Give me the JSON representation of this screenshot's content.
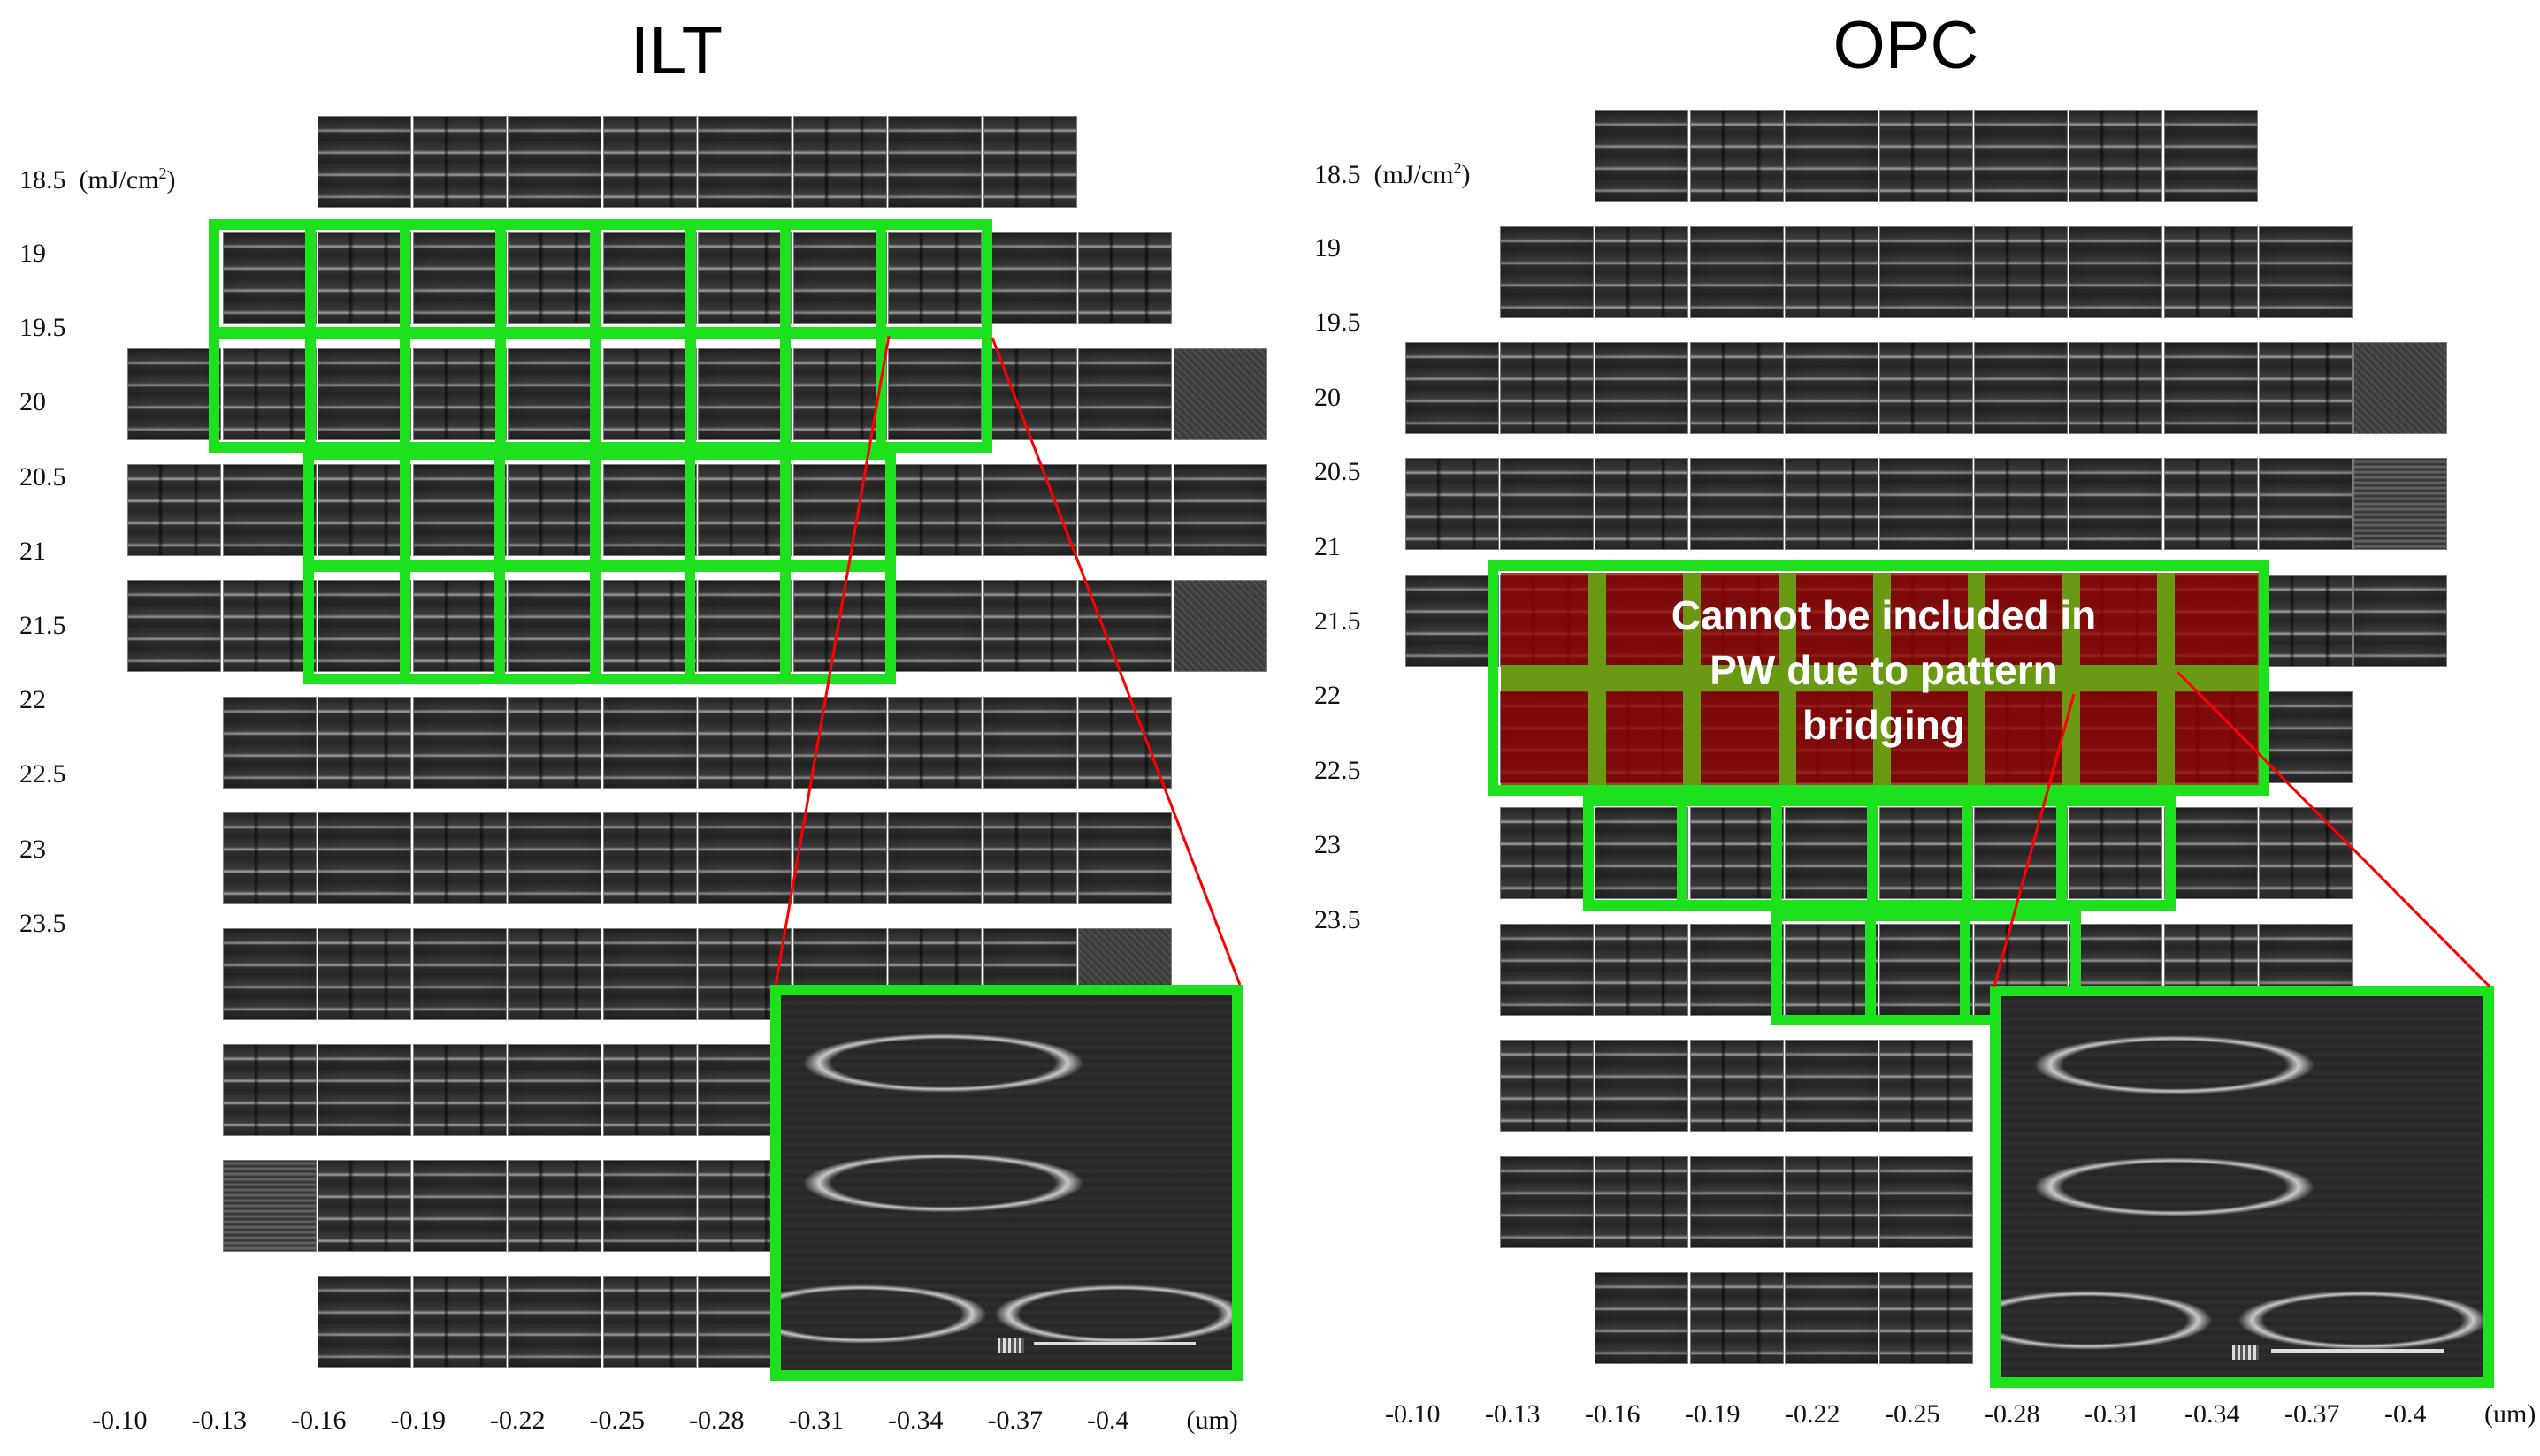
{
  "panels": [
    {
      "id": "ilt",
      "title": "ILT",
      "dose_unit_value": "18.5",
      "dose_unit": "(mJ/cm",
      "dose_unit_sup": "2",
      "dose_unit_close": ")",
      "doses": [
        "19",
        "19.5",
        "20",
        "20.5",
        "21",
        "21.5",
        "22",
        "22.5",
        "23",
        "23.5"
      ],
      "focus": [
        "-0.10",
        "-0.13",
        "-0.16",
        "-0.19",
        "-0.22",
        "-0.25",
        "-0.28",
        "-0.31",
        "-0.34",
        "-0.37",
        "-0.4",
        "(um)"
      ]
    },
    {
      "id": "opc",
      "title": "OPC",
      "dose_unit_value": "18.5",
      "dose_unit": "(mJ/cm",
      "dose_unit_sup": "2",
      "dose_unit_close": ")",
      "doses": [
        "19",
        "19.5",
        "20",
        "20.5",
        "21",
        "21.5",
        "22",
        "22.5",
        "23",
        "23.5"
      ],
      "focus": [
        "-0.10",
        "-0.13",
        "-0.16",
        "-0.19",
        "-0.22",
        "-0.25",
        "-0.28",
        "-0.31",
        "-0.34",
        "-0.37",
        "-0.4",
        "(um)"
      ],
      "annotation": [
        "Cannot be included in",
        "PW due to pattern",
        "bridging"
      ]
    }
  ],
  "colors": {
    "process_window": "#1ee11e",
    "excluded_fill": "#960000",
    "zoom_connector": "#ff0000"
  }
}
